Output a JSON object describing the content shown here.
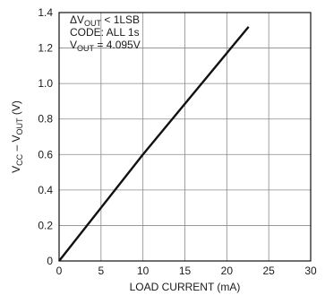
{
  "chart_data": {
    "type": "line",
    "xlabel": "LOAD CURRENT (mA)",
    "ylabel": {
      "pre": "V",
      "sub1": "CC",
      "mid": " – V",
      "sub2": "OUT",
      "post": " (V)"
    },
    "xlim": [
      0,
      30
    ],
    "ylim": [
      0,
      1.4
    ],
    "x_ticks": [
      "0",
      "5",
      "10",
      "15",
      "20",
      "25",
      "30"
    ],
    "y_ticks": [
      "0",
      "0.2",
      "0.4",
      "0.6",
      "0.8",
      "1.0",
      "1.2",
      "1.4"
    ],
    "grid": true,
    "series": [
      {
        "x": [
          0,
          10,
          22.6
        ],
        "y": [
          0,
          0.6,
          1.32
        ],
        "color": "#111111"
      }
    ],
    "annotations": [
      {
        "pre": "ΔV",
        "sub": "OUT",
        "post": " < 1LSB"
      },
      {
        "pre": "CODE: ALL 1s",
        "sub": "",
        "post": ""
      },
      {
        "pre": "V",
        "sub": "OUT",
        "post": " = 4.095V"
      }
    ]
  }
}
